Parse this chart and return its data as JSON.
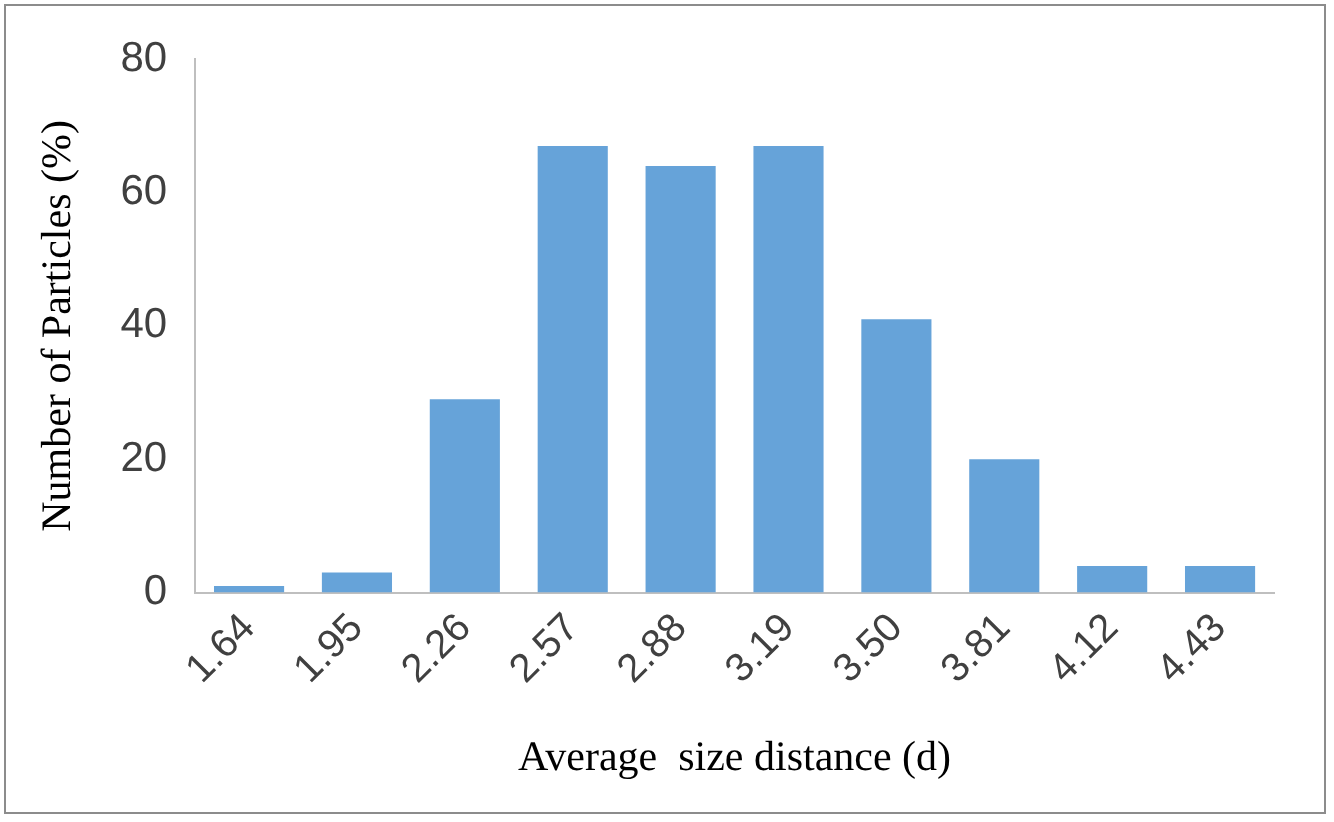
{
  "chart_data": {
    "type": "bar",
    "xlabel": "Average  size distance (d)",
    "ylabel": "Number of Particles (%)",
    "categories": [
      "1.64",
      "1.95",
      "2.26",
      "2.57",
      "2.88",
      "3.19",
      "3.50",
      "3.81",
      "4.12",
      "4.43"
    ],
    "values": [
      1,
      3,
      29,
      67,
      64,
      67,
      41,
      20,
      4,
      4
    ],
    "color": "#66a3d9",
    "ylim": [
      0,
      80
    ],
    "yticks": [
      0,
      20,
      40,
      60,
      80
    ],
    "grid": false,
    "legend": false
  }
}
